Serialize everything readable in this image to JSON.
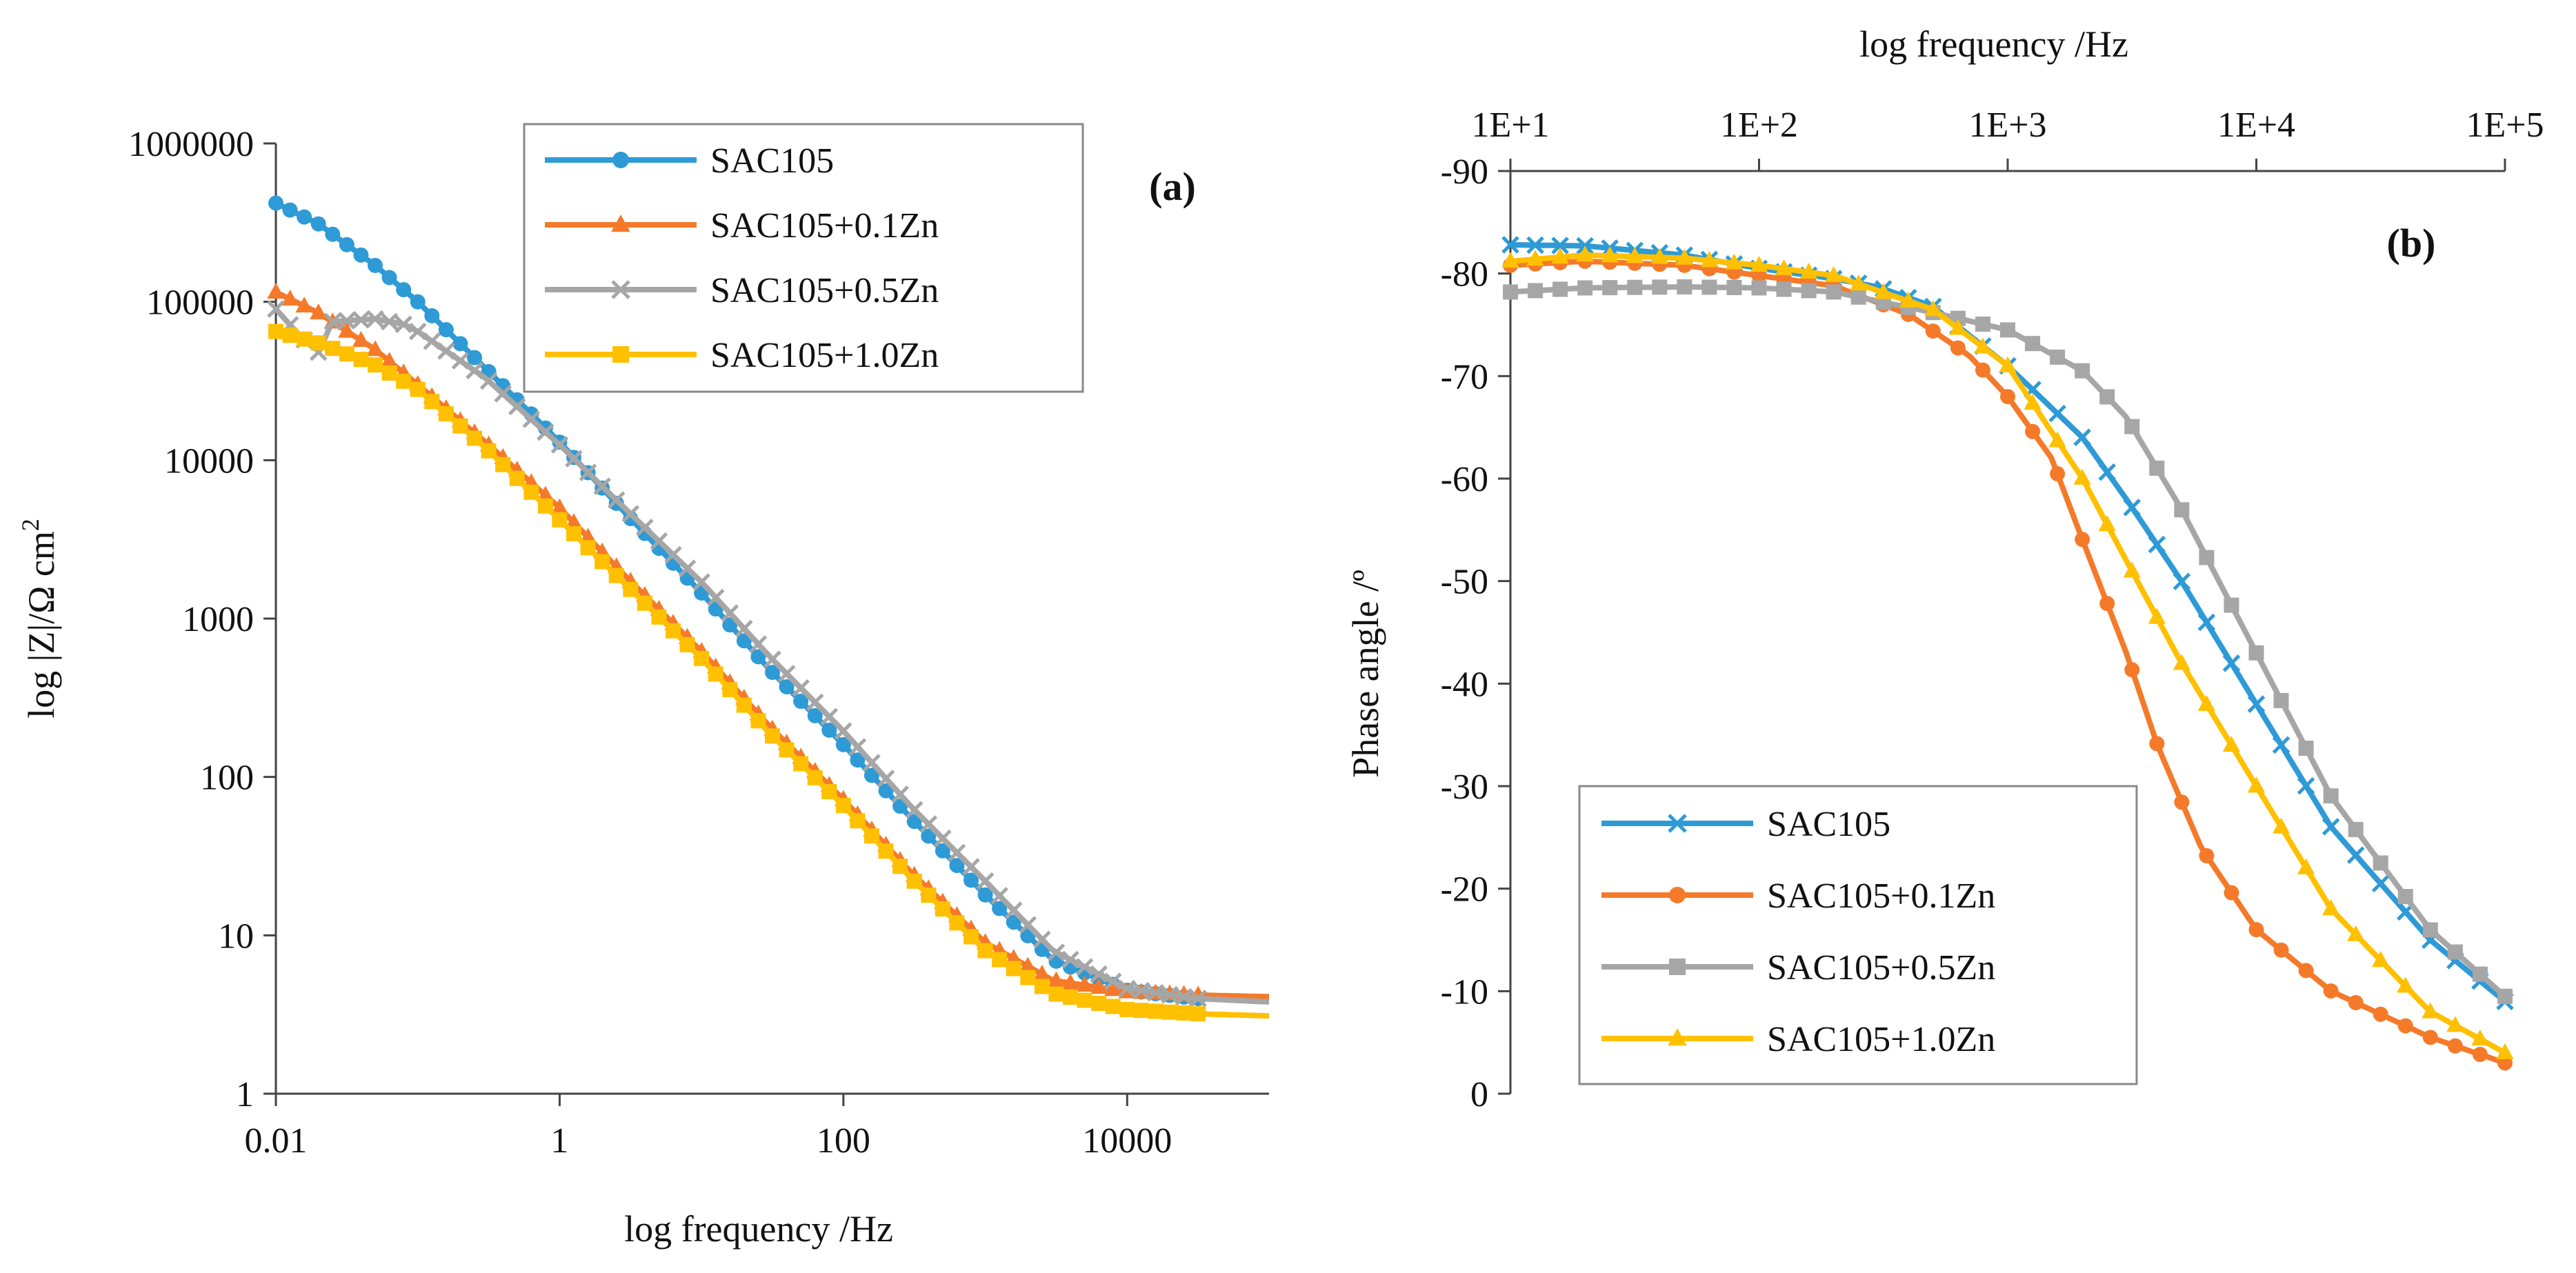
{
  "chart_data": [
    {
      "id": "a",
      "type": "line",
      "panel_label": "(a)",
      "xlabel": "log frequency /Hz",
      "ylabel": "log |Z|/Ω cm",
      "ylabel_sup": "2",
      "x_scale": "log",
      "y_scale": "log",
      "xlim": [
        0.01,
        100000
      ],
      "ylim": [
        1,
        1000000
      ],
      "x_ticks": [
        0.01,
        1,
        100,
        10000
      ],
      "x_tick_labels": [
        "0.01",
        "1",
        "100",
        "10000"
      ],
      "y_ticks": [
        1,
        10,
        100,
        1000,
        10000,
        100000,
        1000000
      ],
      "y_tick_labels": [
        "1",
        "10",
        "100",
        "1000",
        "10000",
        "100000",
        "1000000"
      ],
      "legend_position": "top-right",
      "series": [
        {
          "name": "SAC105",
          "color": "#2E9AD6",
          "marker": "circle",
          "points": [
            [
              0.01,
              420000
            ],
            [
              0.02,
              310000
            ],
            [
              0.05,
              170000
            ],
            [
              0.1,
              100000
            ],
            [
              0.3,
              38000
            ],
            [
              1,
              13000
            ],
            [
              3,
              4500
            ],
            [
              10,
              1450
            ],
            [
              30,
              480
            ],
            [
              100,
              160
            ],
            [
              300,
              55
            ],
            [
              1000,
              18
            ],
            [
              3000,
              7
            ],
            [
              10000,
              4.5
            ],
            [
              30000,
              4.0
            ],
            [
              100000,
              3.8
            ]
          ]
        },
        {
          "name": "SAC105+0.1Zn",
          "color": "#F47A2A",
          "marker": "triangle",
          "points": [
            [
              0.01,
              115000
            ],
            [
              0.02,
              85000
            ],
            [
              0.05,
              50000
            ],
            [
              0.1,
              30000
            ],
            [
              0.3,
              13000
            ],
            [
              1,
              5000
            ],
            [
              3,
              1800
            ],
            [
              10,
              620
            ],
            [
              30,
              210
            ],
            [
              100,
              72
            ],
            [
              300,
              25
            ],
            [
              1000,
              9
            ],
            [
              3000,
              5.2
            ],
            [
              10000,
              4.4
            ],
            [
              30000,
              4.2
            ],
            [
              100000,
              4.1
            ]
          ]
        },
        {
          "name": "SAC105+0.5Zn",
          "color": "#A6A6A6",
          "marker": "x",
          "points": [
            [
              0.01,
              90000
            ],
            [
              0.015,
              60000
            ],
            [
              0.02,
              48000
            ],
            [
              0.025,
              75000
            ],
            [
              0.05,
              78000
            ],
            [
              0.08,
              72000
            ],
            [
              0.1,
              65000
            ],
            [
              0.3,
              33000
            ],
            [
              1,
              12500
            ],
            [
              3,
              4800
            ],
            [
              10,
              1700
            ],
            [
              30,
              580
            ],
            [
              100,
              195
            ],
            [
              300,
              65
            ],
            [
              1000,
              22
            ],
            [
              3000,
              8
            ],
            [
              10000,
              4.6
            ],
            [
              30000,
              4.0
            ],
            [
              100000,
              3.8
            ]
          ]
        },
        {
          "name": "SAC105+1.0Zn",
          "color": "#FFC000",
          "marker": "square",
          "points": [
            [
              0.01,
              65000
            ],
            [
              0.02,
              55000
            ],
            [
              0.05,
              40000
            ],
            [
              0.1,
              28000
            ],
            [
              0.3,
              12000
            ],
            [
              1,
              4200
            ],
            [
              3,
              1600
            ],
            [
              10,
              560
            ],
            [
              30,
              190
            ],
            [
              100,
              66
            ],
            [
              300,
              23
            ],
            [
              1000,
              8
            ],
            [
              3000,
              4.3
            ],
            [
              10000,
              3.4
            ],
            [
              30000,
              3.2
            ],
            [
              100000,
              3.1
            ]
          ]
        }
      ]
    },
    {
      "id": "b",
      "type": "line",
      "panel_label": "(b)",
      "xlabel": "log frequency /Hz",
      "ylabel": "Phase angle /º",
      "x_scale": "log",
      "xlim": [
        10,
        100000
      ],
      "ylim": [
        -90,
        0
      ],
      "x_axis_position": "top",
      "y_reversed": true,
      "x_ticks": [
        10,
        100,
        1000,
        10000,
        100000
      ],
      "x_tick_labels": [
        "1E+1",
        "1E+2",
        "1E+3",
        "1E+4",
        "1E+5"
      ],
      "y_ticks": [
        -90,
        -80,
        -70,
        -60,
        -50,
        -40,
        -30,
        -20,
        -10,
        0
      ],
      "y_tick_labels": [
        "-90",
        "-80",
        "-70",
        "-60",
        "-50",
        "-40",
        "-30",
        "-20",
        "-10",
        "0"
      ],
      "legend_position": "bottom-left",
      "series": [
        {
          "name": "SAC105",
          "color": "#2E9AD6",
          "marker": "x",
          "points": [
            [
              10,
              -82.8
            ],
            [
              20,
              -82.7
            ],
            [
              50,
              -81.8
            ],
            [
              100,
              -80.5
            ],
            [
              200,
              -79.5
            ],
            [
              300,
              -78.7
            ],
            [
              500,
              -76.8
            ],
            [
              1000,
              -71
            ],
            [
              2000,
              -64
            ],
            [
              3000,
              -58
            ],
            [
              5000,
              -50
            ],
            [
              10000,
              -38
            ],
            [
              20000,
              -26
            ],
            [
              50000,
              -15
            ],
            [
              100000,
              -9
            ]
          ]
        },
        {
          "name": "SAC105+0.1Zn",
          "color": "#F47A2A",
          "marker": "circle",
          "points": [
            [
              10,
              -80.8
            ],
            [
              20,
              -81.2
            ],
            [
              50,
              -80.8
            ],
            [
              100,
              -79.8
            ],
            [
              200,
              -78.8
            ],
            [
              400,
              -76
            ],
            [
              700,
              -72
            ],
            [
              1000,
              -68
            ],
            [
              1500,
              -62
            ],
            [
              2000,
              -54
            ],
            [
              3000,
              -43
            ],
            [
              4000,
              -34
            ],
            [
              6000,
              -24
            ],
            [
              10000,
              -16
            ],
            [
              20000,
              -10
            ],
            [
              50000,
              -5.5
            ],
            [
              100000,
              -3
            ]
          ]
        },
        {
          "name": "SAC105+0.5Zn",
          "color": "#A6A6A6",
          "marker": "square",
          "points": [
            [
              10,
              -78.2
            ],
            [
              20,
              -78.6
            ],
            [
              50,
              -78.7
            ],
            [
              100,
              -78.6
            ],
            [
              200,
              -78.2
            ],
            [
              500,
              -76.2
            ],
            [
              1000,
              -74.5
            ],
            [
              2000,
              -70.5
            ],
            [
              3000,
              -66
            ],
            [
              5000,
              -57
            ],
            [
              10000,
              -43
            ],
            [
              20000,
              -29
            ],
            [
              50000,
              -16
            ],
            [
              100000,
              -9.5
            ]
          ]
        },
        {
          "name": "SAC105+1.0Zn",
          "color": "#FFC000",
          "marker": "triangle",
          "points": [
            [
              10,
              -81.2
            ],
            [
              20,
              -81.8
            ],
            [
              50,
              -81.5
            ],
            [
              100,
              -80.8
            ],
            [
              200,
              -79.8
            ],
            [
              500,
              -76.5
            ],
            [
              1000,
              -71
            ],
            [
              2000,
              -60
            ],
            [
              3000,
              -52
            ],
            [
              5000,
              -42
            ],
            [
              10000,
              -30
            ],
            [
              20000,
              -18
            ],
            [
              50000,
              -8
            ],
            [
              100000,
              -4
            ]
          ]
        }
      ]
    }
  ]
}
